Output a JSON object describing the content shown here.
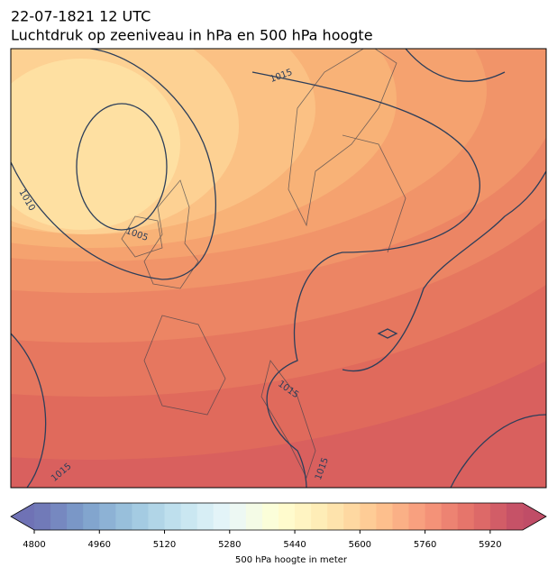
{
  "title": "22-07-1821 12 UTC",
  "subtitle": "Luchtdruk op zeeniveau in hPa en 500 hPa hoogte",
  "isobar_labels": [
    1015,
    1010,
    1005,
    1015,
    1015,
    1015
  ],
  "colorbar": {
    "label": "500 hPa hoogte in meter",
    "range": [
      4800,
      6000
    ],
    "ticks": [
      4800,
      4960,
      5120,
      5280,
      5440,
      5600,
      5760,
      5920
    ]
  }
}
